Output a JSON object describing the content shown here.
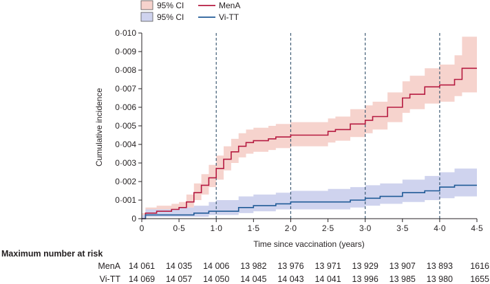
{
  "chart_data": {
    "type": "line",
    "title": "",
    "xlabel": "Time since vaccination (years)",
    "ylabel": "Cumulative incidence",
    "xlim": [
      0,
      4.5
    ],
    "ylim": [
      0,
      0.01
    ],
    "x_ticks": [
      0,
      0.5,
      1.0,
      1.5,
      2.0,
      2.5,
      3.0,
      3.5,
      4.0,
      4.5
    ],
    "x_tick_labels": [
      "0",
      "0·5",
      "1·0",
      "1·5",
      "2·0",
      "2·5",
      "3·0",
      "3·5",
      "4·0",
      "4·5"
    ],
    "y_ticks": [
      0,
      0.001,
      0.002,
      0.003,
      0.004,
      0.005,
      0.006,
      0.007,
      0.008,
      0.009,
      0.01
    ],
    "y_tick_labels": [
      "0",
      "0·001",
      "0·002",
      "0·003",
      "0·004",
      "0·005",
      "0·006",
      "0·007",
      "0·008",
      "0·009",
      "0·010"
    ],
    "reference_lines_x": [
      1.0,
      2.0,
      3.0,
      4.0
    ],
    "legend": [
      {
        "label": "95% CI",
        "kind": "band",
        "series": "MenA"
      },
      {
        "label": "MenA",
        "kind": "line",
        "series": "MenA"
      },
      {
        "label": "95% CI",
        "kind": "band",
        "series": "Vi-TT"
      },
      {
        "label": "Vi-TT",
        "kind": "line",
        "series": "Vi-TT"
      }
    ],
    "series": [
      {
        "name": "MenA",
        "color": "#b5193f",
        "band_color": "#f6d3cd",
        "points": [
          [
            0,
            0
          ],
          [
            0.05,
            0.0003
          ],
          [
            0.2,
            0.0004
          ],
          [
            0.4,
            0.0005
          ],
          [
            0.5,
            0.0006
          ],
          [
            0.6,
            0.0009
          ],
          [
            0.7,
            0.0014
          ],
          [
            0.8,
            0.0018
          ],
          [
            0.9,
            0.0022
          ],
          [
            1.0,
            0.0027
          ],
          [
            1.1,
            0.0032
          ],
          [
            1.2,
            0.0036
          ],
          [
            1.3,
            0.0039
          ],
          [
            1.4,
            0.0041
          ],
          [
            1.5,
            0.0042
          ],
          [
            1.7,
            0.0043
          ],
          [
            1.8,
            0.0044
          ],
          [
            2.0,
            0.0045
          ],
          [
            2.3,
            0.0045
          ],
          [
            2.5,
            0.0047
          ],
          [
            2.6,
            0.0048
          ],
          [
            2.8,
            0.0051
          ],
          [
            3.0,
            0.0053
          ],
          [
            3.1,
            0.0055
          ],
          [
            3.3,
            0.006
          ],
          [
            3.5,
            0.0065
          ],
          [
            3.6,
            0.0067
          ],
          [
            3.8,
            0.0071
          ],
          [
            4.0,
            0.0072
          ],
          [
            4.2,
            0.0075
          ],
          [
            4.3,
            0.0081
          ],
          [
            4.5,
            0.0081
          ]
        ],
        "ci_lower": [
          [
            0,
            0
          ],
          [
            0.05,
            0.0001
          ],
          [
            0.2,
            0.0002
          ],
          [
            0.4,
            0.0003
          ],
          [
            0.5,
            0.0004
          ],
          [
            0.6,
            0.0006
          ],
          [
            0.7,
            0.001
          ],
          [
            0.8,
            0.0013
          ],
          [
            0.9,
            0.0017
          ],
          [
            1.0,
            0.0021
          ],
          [
            1.1,
            0.0026
          ],
          [
            1.2,
            0.003
          ],
          [
            1.3,
            0.0033
          ],
          [
            1.4,
            0.0035
          ],
          [
            1.5,
            0.0036
          ],
          [
            1.7,
            0.0037
          ],
          [
            1.8,
            0.0038
          ],
          [
            2.0,
            0.0039
          ],
          [
            2.3,
            0.0039
          ],
          [
            2.5,
            0.0041
          ],
          [
            2.6,
            0.0042
          ],
          [
            2.8,
            0.0044
          ],
          [
            3.0,
            0.0046
          ],
          [
            3.1,
            0.0048
          ],
          [
            3.3,
            0.0052
          ],
          [
            3.5,
            0.0057
          ],
          [
            3.6,
            0.0059
          ],
          [
            3.8,
            0.0062
          ],
          [
            4.0,
            0.0063
          ],
          [
            4.2,
            0.0066
          ],
          [
            4.3,
            0.0068
          ],
          [
            4.5,
            0.0068
          ]
        ],
        "ci_upper": [
          [
            0,
            0.0003
          ],
          [
            0.05,
            0.0006
          ],
          [
            0.2,
            0.0007
          ],
          [
            0.4,
            0.0008
          ],
          [
            0.5,
            0.0009
          ],
          [
            0.6,
            0.0013
          ],
          [
            0.7,
            0.0019
          ],
          [
            0.8,
            0.0024
          ],
          [
            0.9,
            0.0029
          ],
          [
            1.0,
            0.0034
          ],
          [
            1.1,
            0.0039
          ],
          [
            1.2,
            0.0043
          ],
          [
            1.3,
            0.0046
          ],
          [
            1.4,
            0.0048
          ],
          [
            1.5,
            0.0049
          ],
          [
            1.7,
            0.005
          ],
          [
            1.8,
            0.0051
          ],
          [
            2.0,
            0.0052
          ],
          [
            2.3,
            0.0052
          ],
          [
            2.5,
            0.0054
          ],
          [
            2.6,
            0.0055
          ],
          [
            2.8,
            0.0059
          ],
          [
            3.0,
            0.0061
          ],
          [
            3.1,
            0.0063
          ],
          [
            3.3,
            0.0068
          ],
          [
            3.5,
            0.0074
          ],
          [
            3.6,
            0.0077
          ],
          [
            3.8,
            0.0081
          ],
          [
            4.0,
            0.0083
          ],
          [
            4.2,
            0.0088
          ],
          [
            4.3,
            0.0098
          ],
          [
            4.5,
            0.0098
          ]
        ]
      },
      {
        "name": "Vi-TT",
        "color": "#1f5a96",
        "band_color": "#cfd3ee",
        "points": [
          [
            0,
            0
          ],
          [
            0.05,
            0.0002
          ],
          [
            0.5,
            0.0002
          ],
          [
            0.7,
            0.0003
          ],
          [
            0.9,
            0.0004
          ],
          [
            1.0,
            0.0004
          ],
          [
            1.3,
            0.0006
          ],
          [
            1.5,
            0.0007
          ],
          [
            1.8,
            0.0008
          ],
          [
            2.0,
            0.0009
          ],
          [
            2.5,
            0.0009
          ],
          [
            2.8,
            0.001
          ],
          [
            3.0,
            0.0011
          ],
          [
            3.2,
            0.0012
          ],
          [
            3.5,
            0.0014
          ],
          [
            3.8,
            0.0015
          ],
          [
            4.0,
            0.0017
          ],
          [
            4.2,
            0.0018
          ],
          [
            4.5,
            0.0018
          ]
        ],
        "ci_lower": [
          [
            0,
            0
          ],
          [
            0.05,
            0.0001
          ],
          [
            0.5,
            0.0001
          ],
          [
            0.7,
            0.0001
          ],
          [
            0.9,
            0.0002
          ],
          [
            1.0,
            0.0002
          ],
          [
            1.3,
            0.0003
          ],
          [
            1.5,
            0.0004
          ],
          [
            1.8,
            0.0005
          ],
          [
            2.0,
            0.0005
          ],
          [
            2.5,
            0.0005
          ],
          [
            2.8,
            0.0006
          ],
          [
            3.0,
            0.0007
          ],
          [
            3.2,
            0.0008
          ],
          [
            3.5,
            0.0009
          ],
          [
            3.8,
            0.001
          ],
          [
            4.0,
            0.0011
          ],
          [
            4.2,
            0.0012
          ],
          [
            4.5,
            0.0012
          ]
        ],
        "ci_upper": [
          [
            0,
            0.0002
          ],
          [
            0.05,
            0.0005
          ],
          [
            0.5,
            0.0006
          ],
          [
            0.7,
            0.0007
          ],
          [
            0.9,
            0.0009
          ],
          [
            1.0,
            0.001
          ],
          [
            1.3,
            0.0012
          ],
          [
            1.5,
            0.0013
          ],
          [
            1.8,
            0.0014
          ],
          [
            2.0,
            0.0015
          ],
          [
            2.5,
            0.0016
          ],
          [
            2.8,
            0.0017
          ],
          [
            3.0,
            0.0018
          ],
          [
            3.2,
            0.0019
          ],
          [
            3.5,
            0.0021
          ],
          [
            3.8,
            0.0023
          ],
          [
            4.0,
            0.0025
          ],
          [
            4.2,
            0.0027
          ],
          [
            4.5,
            0.0027
          ]
        ]
      }
    ]
  },
  "risk_table": {
    "heading": "Maximum number at risk",
    "rows": [
      {
        "label": "MenA",
        "values": [
          "14 061",
          "14 035",
          "14 006",
          "13 982",
          "13 976",
          "13 971",
          "13 929",
          "13 907",
          "13 893",
          "1616"
        ]
      },
      {
        "label": "Vi-TT",
        "values": [
          "14 069",
          "14 057",
          "14 050",
          "14 045",
          "14 043",
          "14 041",
          "13 996",
          "13 985",
          "13 980",
          "1655"
        ]
      }
    ]
  },
  "colors": {
    "axis": "#231f20",
    "reference_line": "#3d5a73"
  }
}
